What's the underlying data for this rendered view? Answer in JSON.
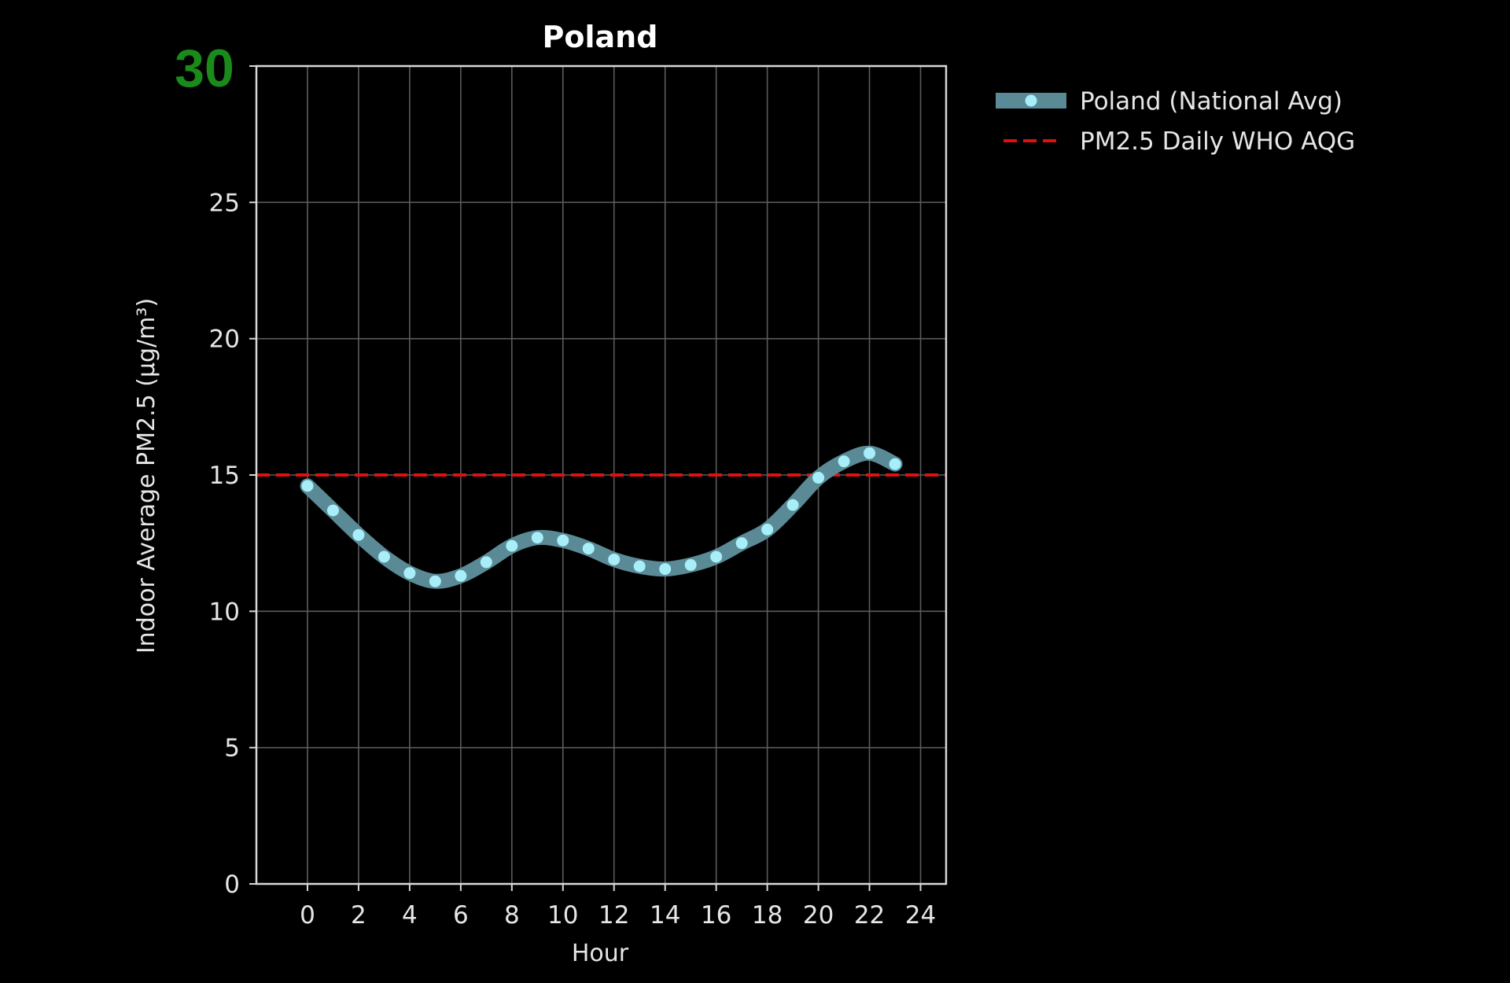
{
  "corner_label": "30",
  "colors": {
    "background": "#000000",
    "corner_label": "#1a8a1a",
    "series_line": "#5a8a96",
    "series_marker": "#a8eef8",
    "threshold": "#e01010",
    "grid": "#5c5c5c",
    "axes": "#d8d8d8",
    "text": "#e6e6e6"
  },
  "chart_data": {
    "type": "line",
    "title": "Poland",
    "xlabel": "Hour",
    "ylabel": "Indoor Average PM2.5 (µg/m³)",
    "xlim": [
      -2,
      25
    ],
    "ylim": [
      0,
      30
    ],
    "xticks": [
      0,
      2,
      4,
      6,
      8,
      10,
      12,
      14,
      16,
      18,
      20,
      22,
      24
    ],
    "yticks": [
      0,
      5,
      10,
      15,
      20,
      25,
      30
    ],
    "grid": true,
    "legend_position": "outside-top-right",
    "series": [
      {
        "name": "Poland (National Avg)",
        "x": [
          0,
          1,
          2,
          3,
          4,
          5,
          6,
          7,
          8,
          9,
          10,
          11,
          12,
          13,
          14,
          15,
          16,
          17,
          18,
          19,
          20,
          21,
          22,
          23
        ],
        "values": [
          14.6,
          13.7,
          12.8,
          12.0,
          11.4,
          11.1,
          11.3,
          11.8,
          12.4,
          12.7,
          12.6,
          12.3,
          11.9,
          11.65,
          11.55,
          11.7,
          12.0,
          12.5,
          13.0,
          13.9,
          14.9,
          15.5,
          15.8,
          15.4
        ]
      }
    ],
    "reference_lines": [
      {
        "name": "PM2.5 Daily WHO AQG",
        "y": 15,
        "style": "dashed"
      }
    ]
  }
}
